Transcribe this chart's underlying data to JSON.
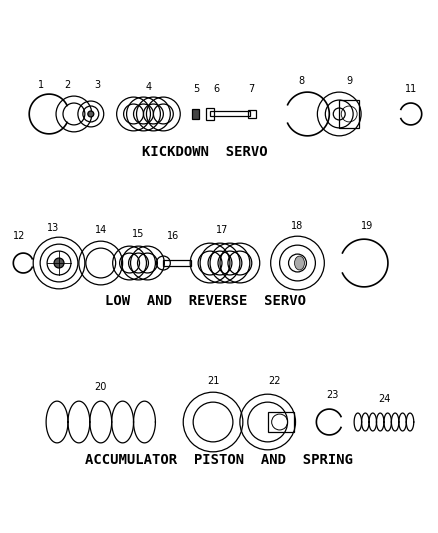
{
  "background_color": "#ffffff",
  "line_color": "#000000",
  "section1_label": "KICKDOWN  SERVO",
  "section2_label": "LOW  AND  REVERSE  SERVO",
  "section3_label": "ACCUMULATOR  PISTON  AND  SPRING",
  "s1y": 420,
  "s2y": 270,
  "s3y": 110,
  "label_fontsize": 9,
  "number_fontsize": 7
}
